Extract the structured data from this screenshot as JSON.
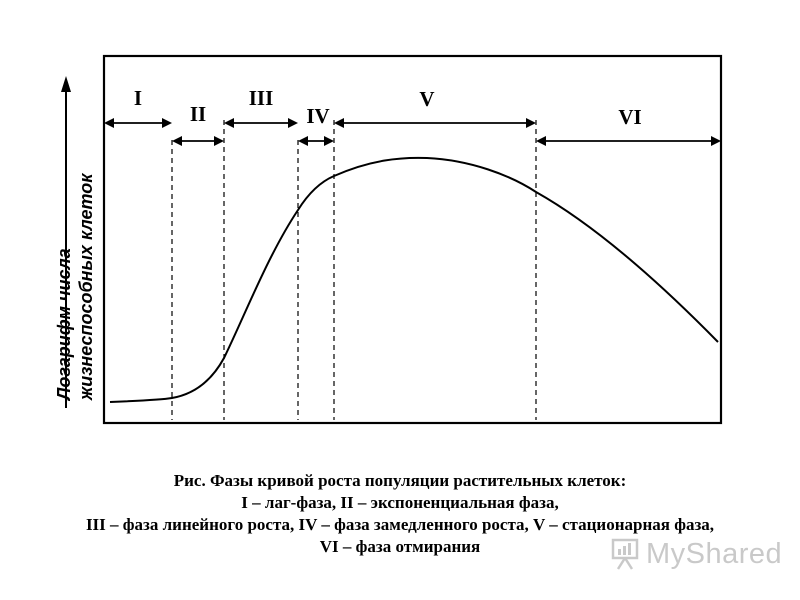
{
  "diagram": {
    "y_axis_label_line1": "Логарифм числа",
    "y_axis_label_line2": "жизнеспособных клеток",
    "phases": [
      {
        "label": "I"
      },
      {
        "label": "II"
      },
      {
        "label": "III"
      },
      {
        "label": "IV"
      },
      {
        "label": "V"
      },
      {
        "label": "VI"
      }
    ],
    "line_color": "#000000"
  },
  "caption": {
    "line1": "Рис. Фазы кривой роста популяции растительных клеток:",
    "line2": "I – лаг-фаза, II – экспоненциальная фаза,",
    "line3": "III – фаза линейного роста, IV – фаза замедленного роста, V – стационарная фаза,",
    "line4": "VI – фаза отмирания"
  },
  "watermark": {
    "text": "MyShared"
  }
}
